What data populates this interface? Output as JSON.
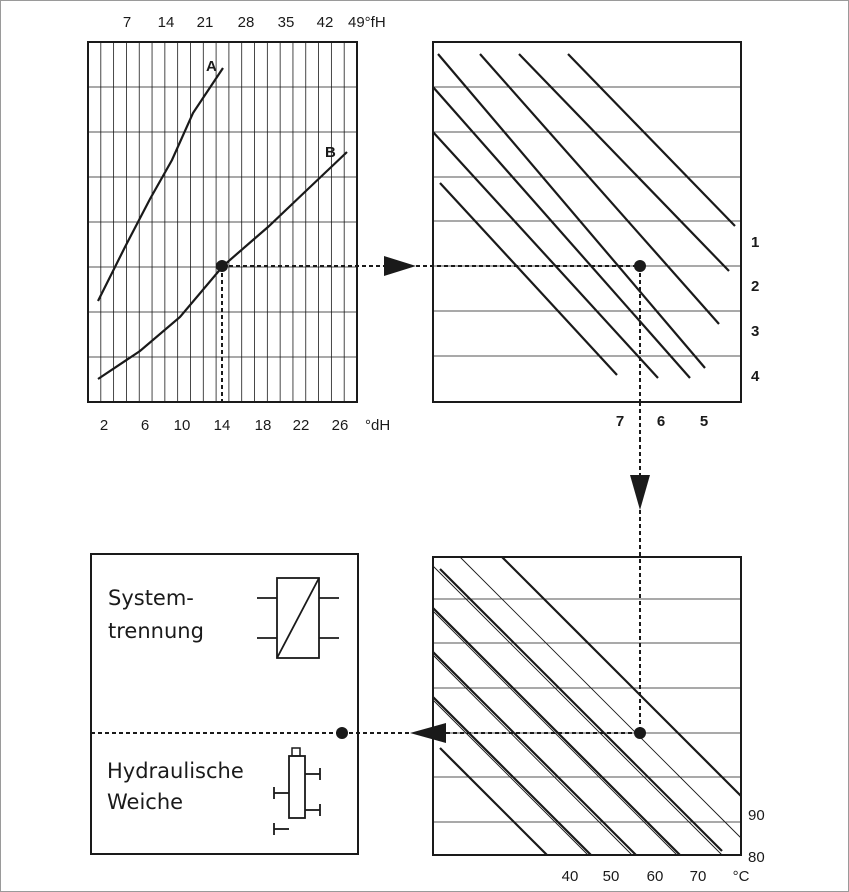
{
  "top_left": {
    "fh_ticks": [
      "7",
      "14",
      "21",
      "28",
      "35",
      "42",
      "49°fH"
    ],
    "dh_ticks": [
      "2",
      "6",
      "10",
      "14",
      "18",
      "22",
      "26",
      "°dH"
    ],
    "curve_a_label": "A",
    "curve_b_label": "B"
  },
  "top_right": {
    "row_labels": [
      "1",
      "2",
      "3",
      "4"
    ],
    "col_labels": [
      "7",
      "6",
      "5"
    ]
  },
  "bottom_right": {
    "x_labels": [
      "40",
      "50",
      "60",
      "70",
      "°C"
    ],
    "right_labels": [
      "90",
      "80"
    ]
  },
  "bottom_left": {
    "option1_line1": "System-",
    "option1_line2": "trennung",
    "option2_line1": "Hydraulische",
    "option2_line2": "Weiche"
  },
  "colors": {
    "ink": "#1a1a1a",
    "grid": "#1a1a1a",
    "frame": "#9a9a9a"
  }
}
